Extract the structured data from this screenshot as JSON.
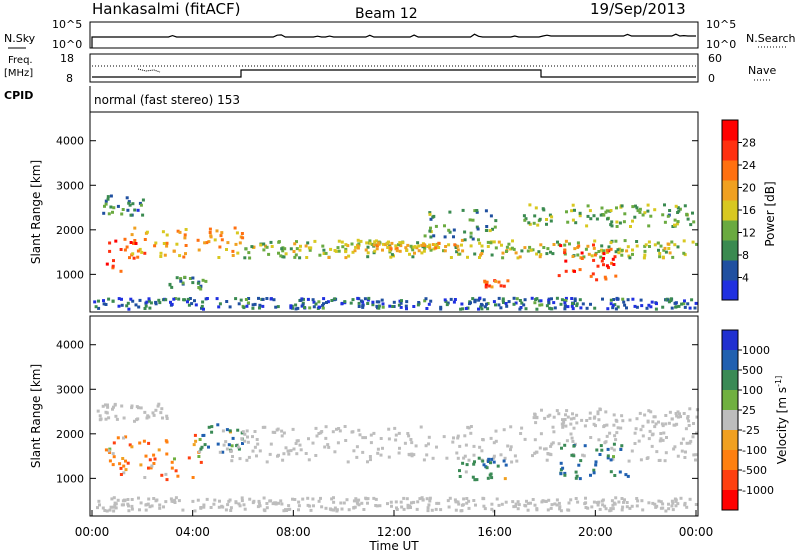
{
  "header": {
    "station": "Hankasalmi (fitACF)",
    "beam": "Beam 12",
    "date": "19/Sep/2013"
  },
  "status_panel": {
    "nsky_label": "N.Sky",
    "nsearch_label": "N.Search",
    "noise_ticks": [
      "10^5",
      "10^0"
    ],
    "freq_label": "Freq.",
    "freq_unit": "[MHz]",
    "freq_ticks": [
      "18",
      "8"
    ],
    "nave_label": "Nave",
    "nave_ticks": [
      "60",
      "0"
    ],
    "cpid_label": "CPID",
    "cpid_value": "normal (fast stereo) 153"
  },
  "colors": {
    "power": [
      "#2030e0",
      "#2050a0",
      "#3a8a50",
      "#6aaa40",
      "#d8c820",
      "#f0a020",
      "#ff7010",
      "#ff3010",
      "#ff0000"
    ],
    "velocity": [
      "#2030d0",
      "#2060b0",
      "#3a8a55",
      "#70b040",
      "#bdbdbd",
      "#f0a020",
      "#ff8010",
      "#ff4010",
      "#ff0000"
    ],
    "ground_scatter": "#bdbdbd"
  },
  "chart_data": [
    {
      "type": "heatmap",
      "name": "power",
      "ylabel": "Slant Range [km]",
      "yticks": [
        "1000",
        "2000",
        "3000",
        "4000"
      ],
      "ylim": [
        200,
        4600
      ],
      "xlim": [
        0,
        24
      ],
      "colorbar": {
        "label": "Power [dB]",
        "ticks": [
          "4",
          "8",
          "12",
          "16",
          "20",
          "24",
          "28"
        ],
        "range": [
          0,
          32
        ]
      },
      "features": [
        {
          "t0": 0.0,
          "t1": 2.0,
          "r0": 2350,
          "r1": 2800,
          "level": 8
        },
        {
          "t0": 0.5,
          "t1": 1.7,
          "r0": 1050,
          "r1": 1900,
          "level": 26
        },
        {
          "t0": 1.5,
          "t1": 6.0,
          "r0": 1400,
          "r1": 2100,
          "level": 20
        },
        {
          "t0": 3.0,
          "t1": 4.5,
          "r0": 700,
          "r1": 1000,
          "level": 10
        },
        {
          "t0": 6.0,
          "t1": 24.0,
          "r0": 1400,
          "r1": 1800,
          "level": 14
        },
        {
          "t0": 10.0,
          "t1": 14.5,
          "r0": 1550,
          "r1": 1750,
          "level": 18
        },
        {
          "t0": 13.0,
          "t1": 16.0,
          "r0": 1800,
          "r1": 2500,
          "level": 10
        },
        {
          "t0": 15.5,
          "t1": 16.5,
          "r0": 750,
          "r1": 900,
          "level": 24
        },
        {
          "t0": 17.0,
          "t1": 24.0,
          "r0": 2100,
          "r1": 2600,
          "level": 12
        },
        {
          "t0": 18.5,
          "t1": 21.0,
          "r0": 900,
          "r1": 1700,
          "level": 26
        },
        {
          "t0": 0.0,
          "t1": 24.0,
          "r0": 250,
          "r1": 500,
          "level": 6
        }
      ]
    },
    {
      "type": "heatmap",
      "name": "velocity",
      "ylabel": "Slant Range [km]",
      "yticks": [
        "1000",
        "2000",
        "3000",
        "4000"
      ],
      "ylim": [
        200,
        4600
      ],
      "xlim": [
        0,
        24
      ],
      "xlabel": "Time UT",
      "xticks": [
        "00:00",
        "04:00",
        "08:00",
        "12:00",
        "16:00",
        "20:00",
        "00:00"
      ],
      "colorbar": {
        "label": "Velocity [m s^-1]",
        "ticks": [
          "1000",
          "500",
          "100",
          "25",
          "-25",
          "-100",
          "-500",
          "-1000"
        ]
      },
      "features": [
        {
          "t0": 0.0,
          "t1": 3.0,
          "r0": 2300,
          "r1": 2700,
          "kind": "ground"
        },
        {
          "t0": 0.5,
          "t1": 4.5,
          "r0": 1000,
          "r1": 2000,
          "value": -200
        },
        {
          "t0": 4.0,
          "t1": 6.0,
          "r0": 1600,
          "r1": 2300,
          "value": 200
        },
        {
          "t0": 5.0,
          "t1": 24.0,
          "r0": 1400,
          "r1": 2200,
          "kind": "ground"
        },
        {
          "t0": 14.5,
          "t1": 16.5,
          "r0": 1000,
          "r1": 1500,
          "value": 200
        },
        {
          "t0": 18.5,
          "t1": 21.5,
          "r0": 1000,
          "r1": 1800,
          "value": 300
        },
        {
          "t0": 17.5,
          "t1": 24.0,
          "r0": 2200,
          "r1": 2600,
          "kind": "ground"
        },
        {
          "t0": 0.0,
          "t1": 24.0,
          "r0": 300,
          "r1": 600,
          "kind": "ground"
        }
      ]
    }
  ]
}
